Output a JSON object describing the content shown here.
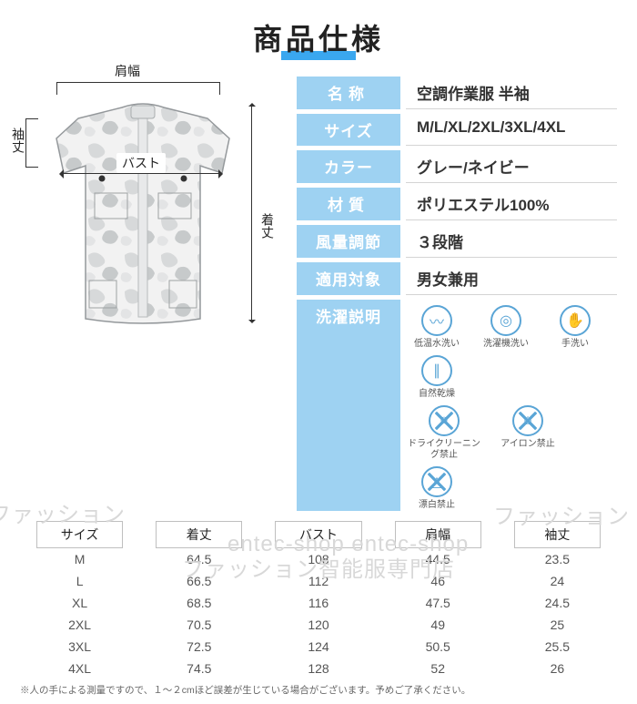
{
  "title": "商品仕様",
  "diagram_labels": {
    "shoulder": "肩幅",
    "sleeve": "袖丈",
    "length": "着丈",
    "bust": "バスト"
  },
  "spec_rows": [
    {
      "k": "名称",
      "kcls": "",
      "v": "空調作業服 半袖"
    },
    {
      "k": "サイズ",
      "kcls": "tight",
      "v": "M/L/XL/2XL/3XL/4XL"
    },
    {
      "k": "カラー",
      "kcls": "tight",
      "v": "グレー/ネイビー"
    },
    {
      "k": "材質",
      "kcls": "",
      "v": "ポリエステル100%"
    },
    {
      "k": "風量調節",
      "kcls": "tight",
      "v": "３段階"
    },
    {
      "k": "適用対象",
      "kcls": "tight",
      "v": "男女兼用"
    },
    {
      "k": "洗濯説明",
      "kcls": "tight",
      "v": ""
    }
  ],
  "wash": {
    "row1": [
      {
        "name": "low-temp-wash",
        "label": "低温水洗い",
        "glyph": "〰"
      },
      {
        "name": "machine-wash",
        "label": "洗濯機洗い",
        "glyph": "◎"
      },
      {
        "name": "hand-wash",
        "label": "手洗い",
        "glyph": "✋"
      },
      {
        "name": "natural-dry",
        "label": "自然乾燥",
        "glyph": "∥"
      }
    ],
    "row2": [
      {
        "name": "no-dry-clean",
        "label": "ドライクリーニング禁止",
        "glyph": "○"
      },
      {
        "name": "no-iron",
        "label": "アイロン禁止",
        "glyph": "⌂"
      },
      {
        "name": "no-bleach",
        "label": "漂白禁止",
        "glyph": "△"
      }
    ]
  },
  "size_table": {
    "headers": [
      "サイズ",
      "着丈",
      "バスト",
      "肩幅",
      "袖丈"
    ],
    "rows": [
      [
        "M",
        "64.5",
        "108",
        "44.5",
        "23.5"
      ],
      [
        "L",
        "66.5",
        "112",
        "46",
        "24"
      ],
      [
        "XL",
        "68.5",
        "116",
        "47.5",
        "24.5"
      ],
      [
        "2XL",
        "70.5",
        "120",
        "49",
        "25"
      ],
      [
        "3XL",
        "72.5",
        "124",
        "50.5",
        "25.5"
      ],
      [
        "4XL",
        "74.5",
        "128",
        "52",
        "26"
      ]
    ]
  },
  "note": "※人の手による測量ですので、１～２cmほど誤差が生じている場合がございます。予めご了承ください。",
  "watermarks": {
    "a": "ファッション",
    "b": "entec-shop entec-shop",
    "c": "ファッション智能服専門店"
  },
  "colors": {
    "accent": "#3aa7ef",
    "chip": "#9ed2f2",
    "icon": "#5aa5d6"
  }
}
